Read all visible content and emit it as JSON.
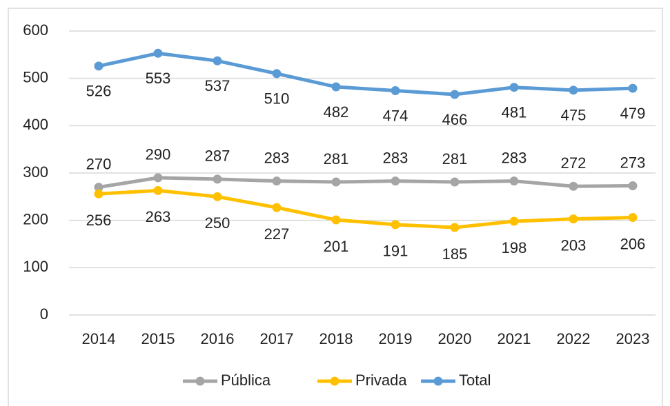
{
  "chart_data": {
    "type": "line",
    "categories": [
      "2014",
      "2015",
      "2016",
      "2017",
      "2018",
      "2019",
      "2020",
      "2021",
      "2022",
      "2023"
    ],
    "series": [
      {
        "name": "Pública",
        "color": "#a5a5a5",
        "values": [
          270,
          290,
          287,
          283,
          281,
          283,
          281,
          283,
          272,
          273
        ]
      },
      {
        "name": "Privada",
        "color": "#ffc000",
        "values": [
          256,
          263,
          250,
          227,
          201,
          191,
          185,
          198,
          203,
          206
        ]
      },
      {
        "name": "Total",
        "color": "#5b9bd5",
        "values": [
          526,
          553,
          537,
          510,
          482,
          474,
          466,
          481,
          475,
          479
        ]
      }
    ],
    "ylim": [
      0,
      600
    ],
    "yticks": [
      0,
      100,
      200,
      300,
      400,
      500,
      600
    ],
    "grid": true,
    "legend": "bottom"
  }
}
